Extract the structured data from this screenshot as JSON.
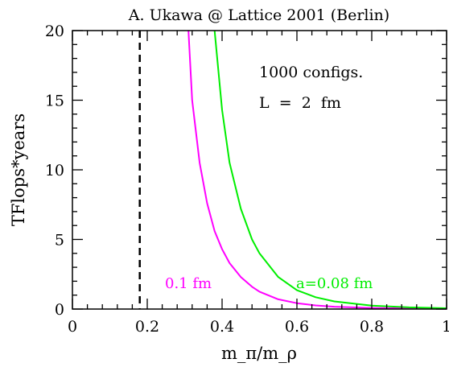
{
  "chart_data": {
    "type": "line",
    "title": "A. Ukawa @ Lattice 2001 (Berlin)",
    "xlabel": "m_π/m_ρ",
    "ylabel": "TFlops*years",
    "xlim": [
      0,
      1
    ],
    "ylim": [
      0,
      20
    ],
    "x_ticks": [
      "0",
      "0.2",
      "0.4",
      "0.6",
      "0.8",
      "1"
    ],
    "y_ticks": [
      "0",
      "5",
      "10",
      "15",
      "20"
    ],
    "grid": false,
    "annotations": [
      "1000 configs.",
      "L  =  2  fm"
    ],
    "vertical_line": {
      "x": 0.18,
      "style": "dashed",
      "color": "#000000"
    },
    "series": [
      {
        "name": "0.1 fm",
        "color": "#ff00ff",
        "x": [
          0.31,
          0.32,
          0.34,
          0.36,
          0.38,
          0.4,
          0.42,
          0.45,
          0.48,
          0.5,
          0.55,
          0.6,
          0.65,
          0.7,
          0.8,
          0.9,
          1.0
        ],
        "y": [
          20.0,
          15.0,
          10.5,
          7.6,
          5.6,
          4.3,
          3.3,
          2.3,
          1.6,
          1.25,
          0.7,
          0.42,
          0.26,
          0.17,
          0.08,
          0.04,
          0.02
        ]
      },
      {
        "name": "a=0.08 fm",
        "color": "#00ee00",
        "x": [
          0.38,
          0.4,
          0.42,
          0.45,
          0.48,
          0.5,
          0.55,
          0.6,
          0.65,
          0.7,
          0.8,
          0.9,
          1.0
        ],
        "y": [
          20.0,
          14.3,
          10.5,
          7.2,
          5.0,
          4.0,
          2.3,
          1.35,
          0.85,
          0.55,
          0.25,
          0.12,
          0.06
        ]
      }
    ]
  }
}
